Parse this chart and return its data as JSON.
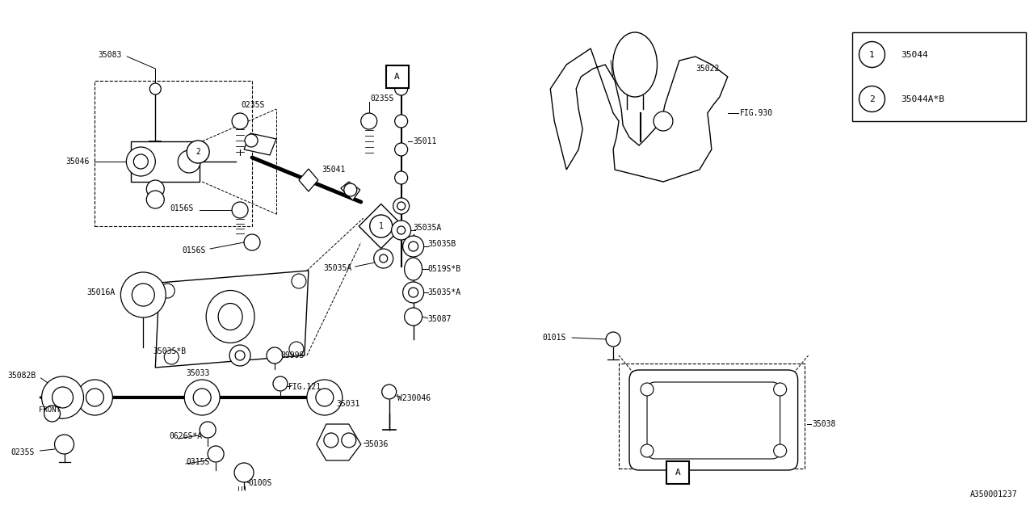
{
  "bg_color": "#ffffff",
  "line_color": "#000000",
  "legend": [
    {
      "num": "1",
      "code": "35044"
    },
    {
      "num": "2",
      "code": "35044A*B"
    }
  ],
  "ref_code": "A350001237"
}
